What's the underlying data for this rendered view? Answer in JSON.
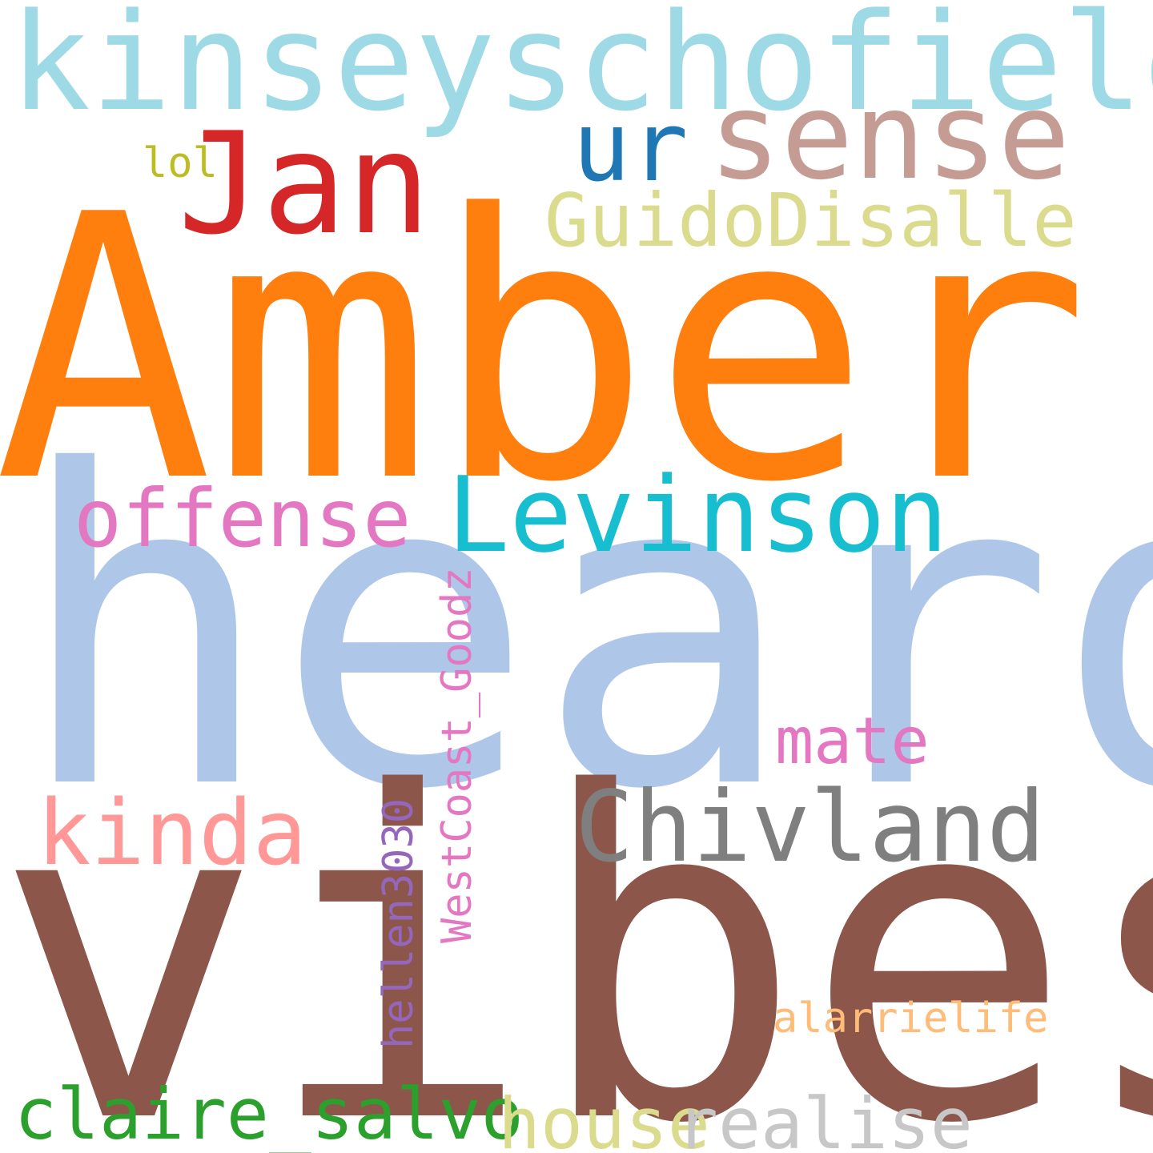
{
  "words": {
    "kinseyschofield": "kinseyschofield",
    "sense": "sense",
    "ur": "ur",
    "jan": "Jan",
    "lol": "lol",
    "guidodisalle": "GuidoDisalle",
    "amber": "Amber",
    "offense": "offense",
    "levinson": "Levinson",
    "heard": "heard",
    "mate": "mate",
    "kinda": "kinda",
    "chivland": "Chivland",
    "vibes": "vibes",
    "westcoast_goodz": "WestCoast_Goodz",
    "hellen3030": "hellen3030",
    "alarrielife": "alarrielife",
    "claire_salvo": "claire_salvo",
    "house": "house",
    "realise": "realise"
  },
  "colors": {
    "kinseyschofield": "#9edae5",
    "sense": "#c49c94",
    "ur": "#1f77b4",
    "jan": "#d62728",
    "lol": "#bcbd22",
    "guidodisalle": "#dbdb8d",
    "amber": "#ff7f0e",
    "offense": "#e377c2",
    "levinson": "#17becf",
    "heard": "#aec7e8",
    "mate": "#e377c2",
    "kinda": "#ff9896",
    "chivland": "#7f7f7f",
    "vibes": "#8c564b",
    "westcoast_goodz": "#e377c2",
    "hellen3030": "#9467bd",
    "alarrielife": "#ffbb78",
    "claire_salvo": "#2ca02c",
    "house": "#dbdb8d",
    "realise": "#c7c7c7"
  }
}
